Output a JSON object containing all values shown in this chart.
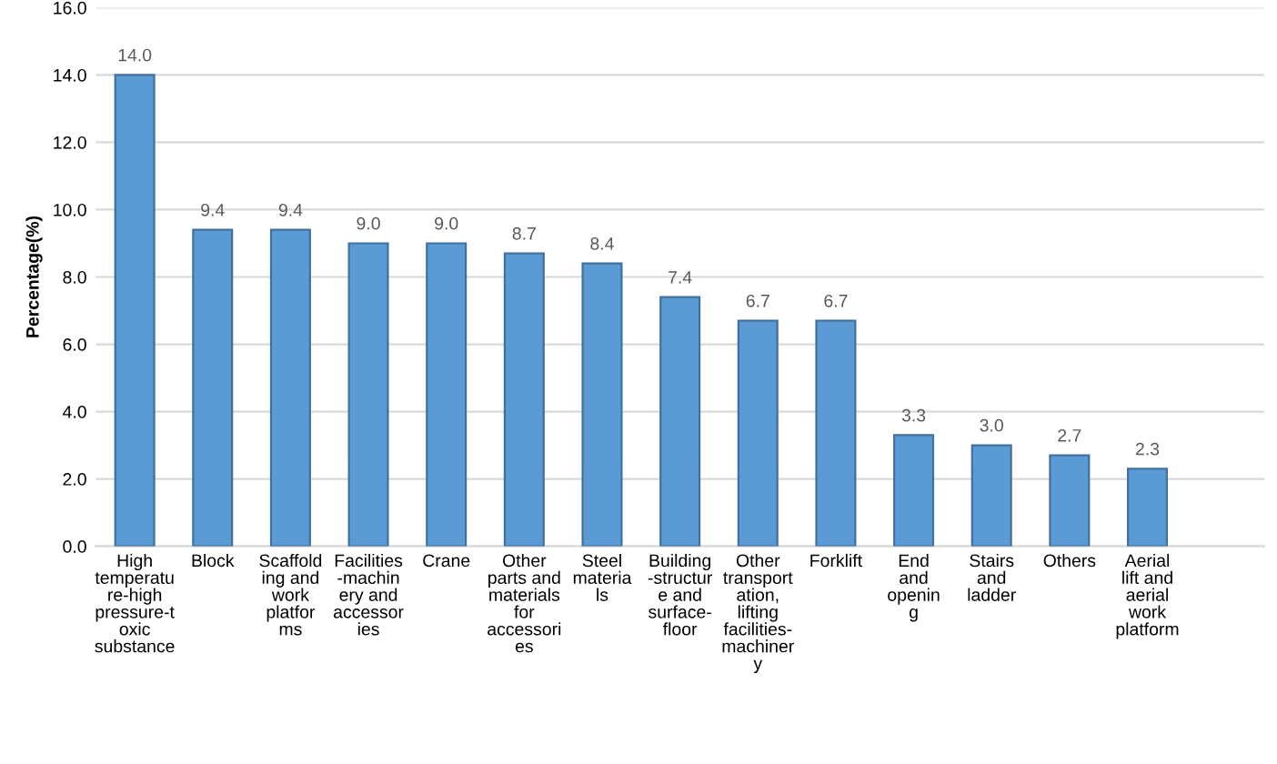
{
  "chart_data": {
    "type": "bar",
    "ylabel": "Percentage(%)",
    "categories": [
      "High\ntemperatu\nre-high\npressure-t\noxic\nsubstance",
      "Block",
      "Scaffold\ning and\nwork\nplatfor\nms",
      "Facilities\n-machin\nery and\naccessor\nies",
      "Crane",
      "Other\nparts and\nmaterials\nfor\naccessori\nes",
      "Steel\nmateria\nls",
      "Building\n-structur\ne and\nsurface-\nfloor",
      "Other\ntransport\nation,\nlifting\nfacilities-\nmachiner\ny",
      "Forklift",
      "End\nand\nopenin\ng",
      "Stairs\nand\nladder",
      "Others",
      "Aerial\nlift and\naerial\nwork\nplatform"
    ],
    "values": [
      14.0,
      9.4,
      9.4,
      9.0,
      9.0,
      8.7,
      8.4,
      7.4,
      6.7,
      6.7,
      3.3,
      3.0,
      2.7,
      2.3
    ],
    "color": "#5b9bd5",
    "ylim": [
      0,
      16
    ],
    "yticks": [
      {
        "value": 0,
        "label": "0.0"
      },
      {
        "value": 2,
        "label": "2.0"
      },
      {
        "value": 4,
        "label": "4.0"
      },
      {
        "value": 6,
        "label": "6.0"
      },
      {
        "value": 8,
        "label": "8.0"
      },
      {
        "value": 10,
        "label": "10.0"
      },
      {
        "value": 12,
        "label": "12.0"
      },
      {
        "value": 14,
        "label": "14.0"
      },
      {
        "value": 16,
        "label": "16.0"
      }
    ],
    "value_labels": [
      "14.0",
      "9.4",
      "9.4",
      "9.0",
      "9.0",
      "8.7",
      "8.4",
      "7.4",
      "6.7",
      "6.7",
      "3.3",
      "3.0",
      "2.7",
      "2.3"
    ],
    "grid": "y"
  }
}
